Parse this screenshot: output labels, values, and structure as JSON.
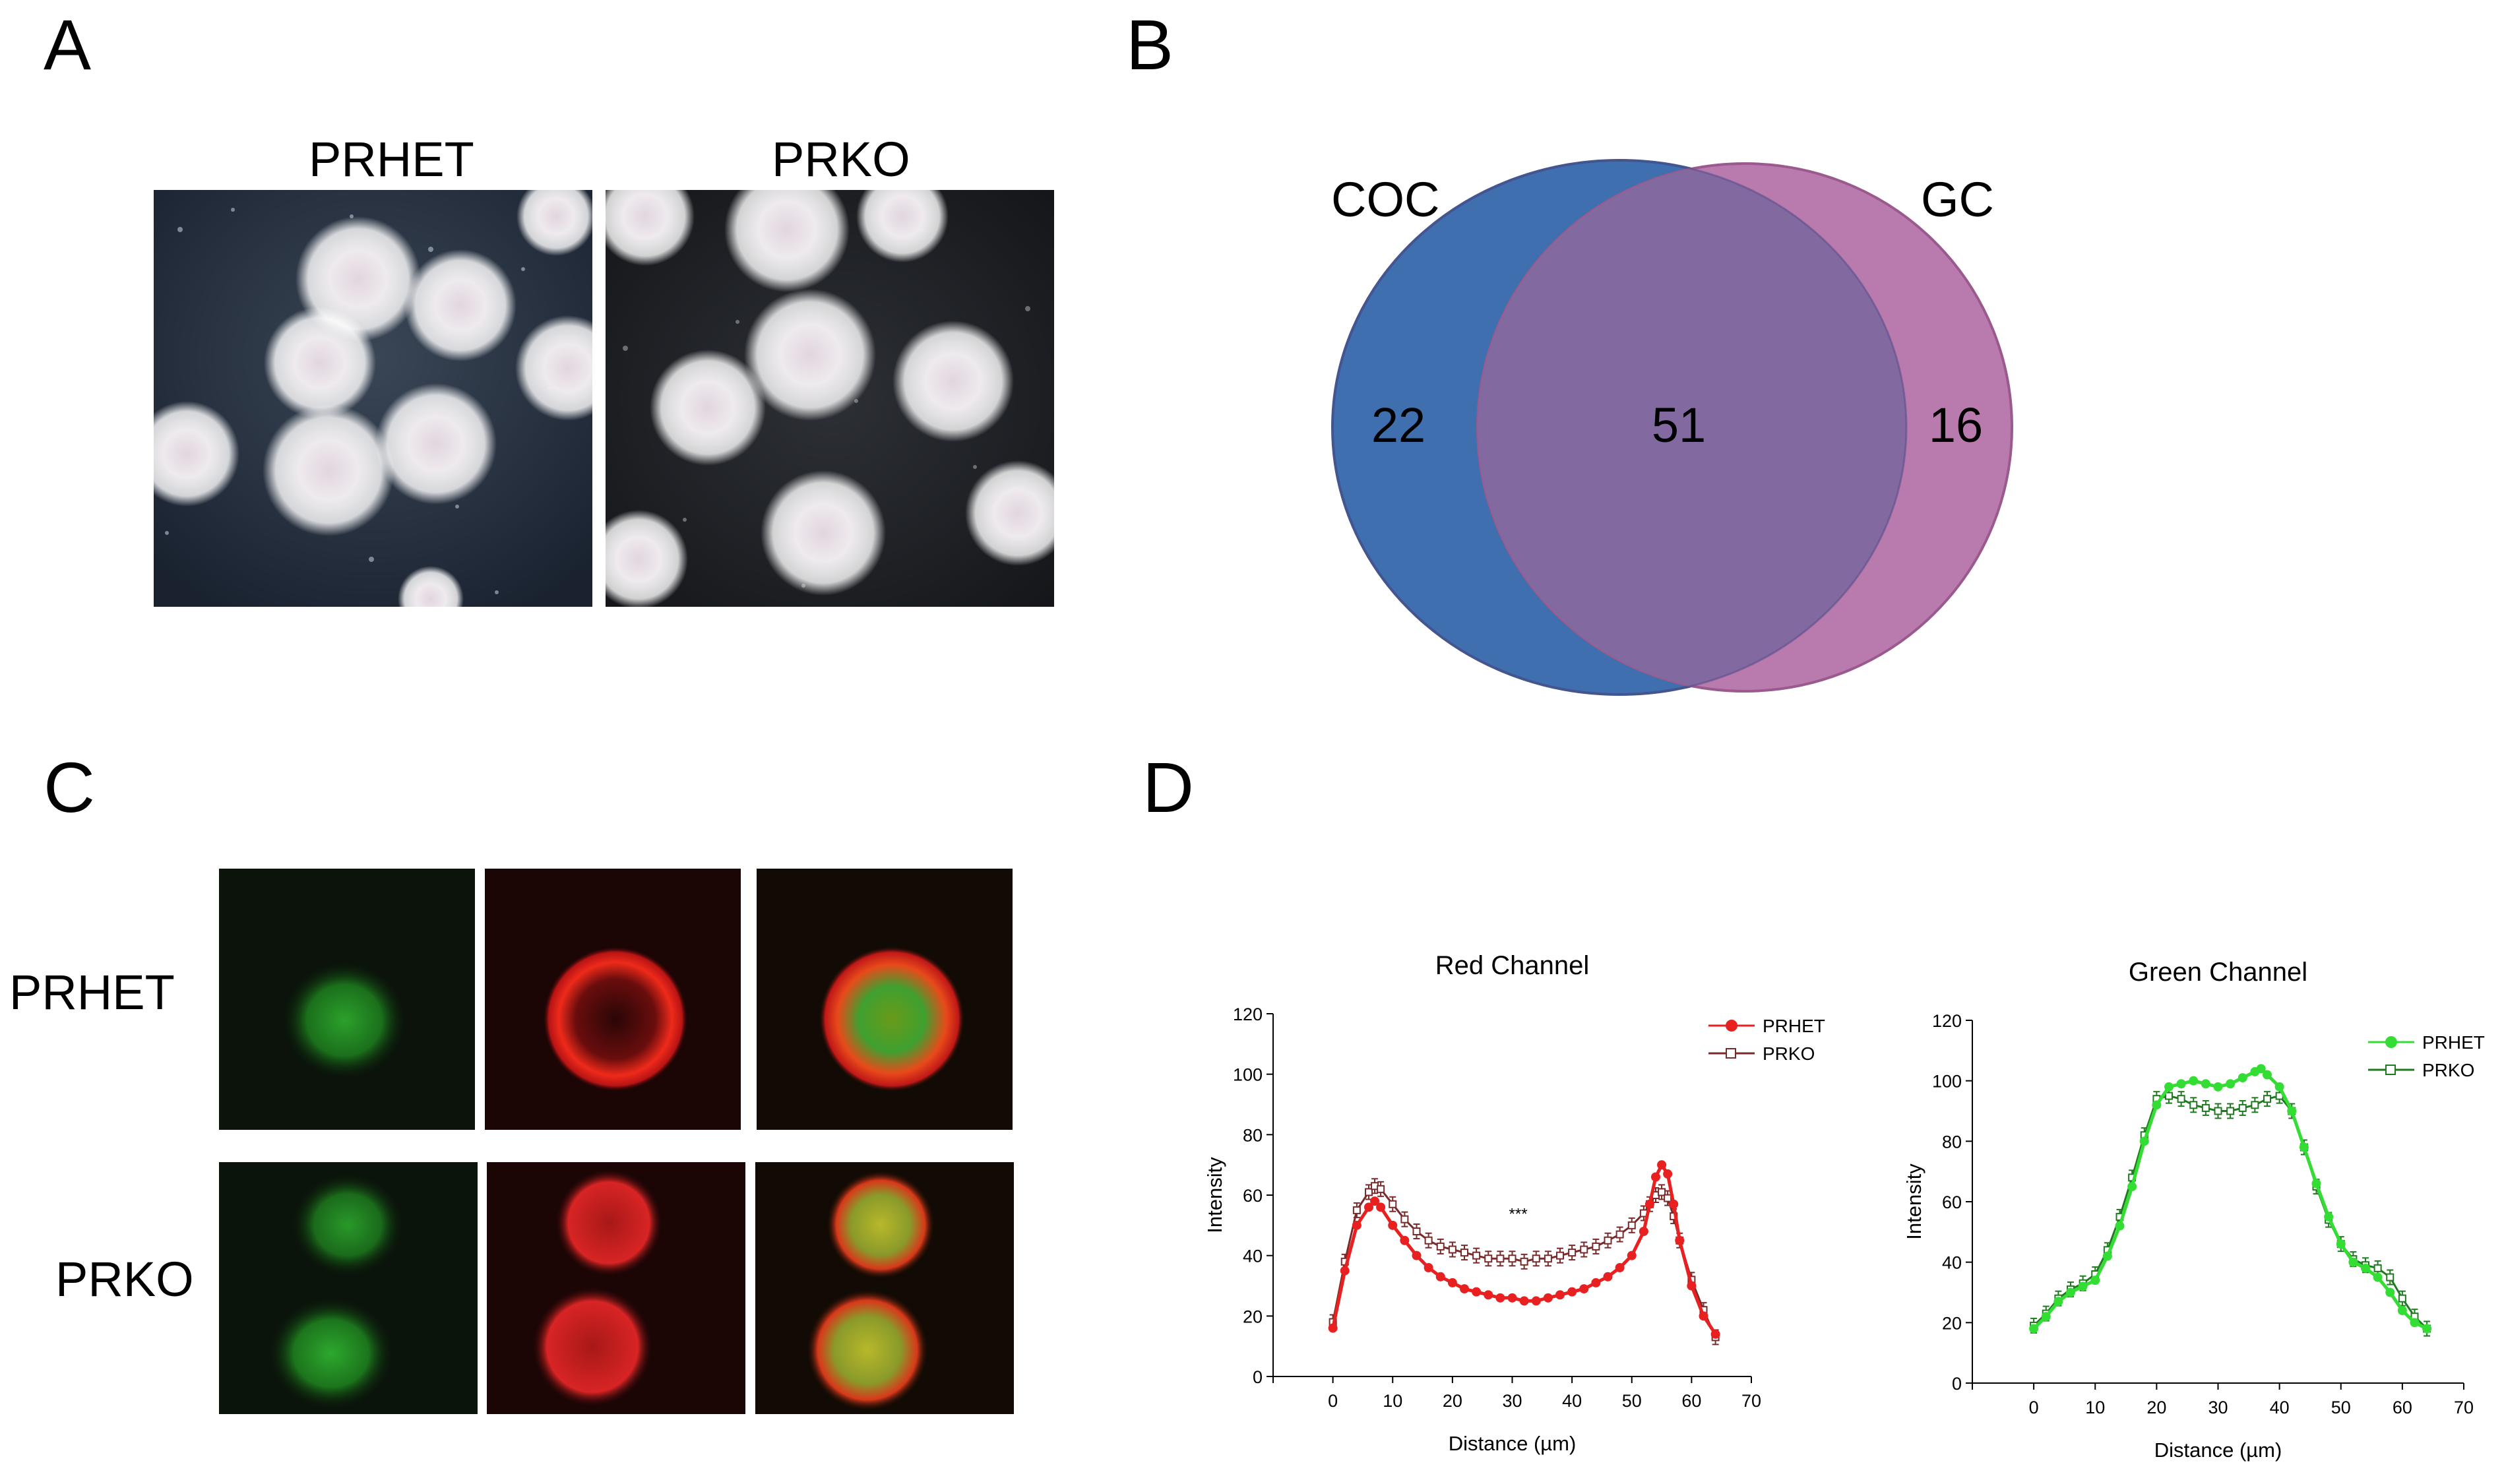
{
  "panels": {
    "A": {
      "letter": "A",
      "labels": [
        "PRHET",
        "PRKO"
      ]
    },
    "B": {
      "letter": "B",
      "sets": [
        {
          "name": "COC",
          "color": "#3f6faf",
          "only": "22"
        },
        {
          "name": "GC",
          "color": "#b97aae",
          "only": "16"
        }
      ],
      "overlap": "51",
      "overlap_color": "#826aa0"
    },
    "C": {
      "letter": "C",
      "row_labels": [
        "PRHET",
        "PRKO"
      ]
    },
    "D": {
      "letter": "D"
    }
  },
  "chart_data": [
    {
      "type": "line",
      "title": "Red Channel",
      "xlabel": "Distance (µm)",
      "ylabel": "Intensity",
      "xlim": [
        -10,
        70
      ],
      "ylim": [
        0,
        120
      ],
      "x_ticks": [
        "0",
        "10",
        "20",
        "30",
        "40",
        "50",
        "60",
        "70"
      ],
      "y_ticks": [
        "0",
        "20",
        "40",
        "60",
        "80",
        "100",
        "120"
      ],
      "annotation": "***",
      "annotation_at": [
        31,
        52
      ],
      "legend": "top-right",
      "series": [
        {
          "name": "PRHET",
          "color": "#e82020",
          "marker": "filled-circle",
          "x": [
            0,
            2,
            4,
            6,
            7,
            8,
            10,
            12,
            14,
            16,
            18,
            20,
            22,
            24,
            26,
            28,
            30,
            32,
            34,
            36,
            38,
            40,
            42,
            44,
            46,
            48,
            50,
            52,
            53,
            54,
            55,
            56,
            57,
            58,
            60,
            62,
            64
          ],
          "y": [
            16,
            35,
            50,
            56,
            58,
            56,
            50,
            45,
            40,
            36,
            33,
            31,
            29,
            28,
            27,
            26,
            26,
            25,
            25,
            26,
            27,
            28,
            29,
            31,
            33,
            36,
            40,
            48,
            57,
            66,
            70,
            67,
            57,
            45,
            30,
            20,
            14
          ]
        },
        {
          "name": "PRKO",
          "color": "#7a2a2a",
          "marker": "open-square",
          "x": [
            0,
            2,
            4,
            6,
            7,
            8,
            10,
            12,
            14,
            16,
            18,
            20,
            22,
            24,
            26,
            28,
            30,
            32,
            34,
            36,
            38,
            40,
            42,
            44,
            46,
            48,
            50,
            52,
            53,
            54,
            55,
            56,
            57,
            58,
            60,
            62,
            64
          ],
          "y": [
            18,
            38,
            55,
            61,
            63,
            62,
            57,
            52,
            48,
            45,
            43,
            42,
            41,
            40,
            39,
            39,
            39,
            38,
            39,
            39,
            40,
            41,
            42,
            43,
            45,
            47,
            50,
            54,
            57,
            60,
            61,
            59,
            53,
            45,
            32,
            22,
            13
          ]
        }
      ]
    },
    {
      "type": "line",
      "title": "Green Channel",
      "xlabel": "Distance (µm)",
      "ylabel": "Intensity",
      "xlim": [
        -10,
        70
      ],
      "ylim": [
        0,
        120
      ],
      "x_ticks": [
        "0",
        "10",
        "20",
        "30",
        "40",
        "50",
        "60",
        "70"
      ],
      "y_ticks": [
        "0",
        "20",
        "40",
        "60",
        "80",
        "100",
        "120"
      ],
      "legend": "top-right",
      "series": [
        {
          "name": "PRHET",
          "color": "#33dd33",
          "marker": "filled-circle",
          "x": [
            0,
            2,
            4,
            6,
            8,
            10,
            12,
            14,
            16,
            18,
            20,
            22,
            24,
            26,
            28,
            30,
            32,
            34,
            36,
            37,
            38,
            40,
            42,
            44,
            46,
            48,
            50,
            52,
            54,
            56,
            58,
            60,
            62,
            64
          ],
          "y": [
            18,
            22,
            27,
            30,
            32,
            34,
            42,
            52,
            65,
            80,
            92,
            98,
            99,
            100,
            99,
            98,
            99,
            101,
            103,
            104,
            102,
            98,
            90,
            78,
            66,
            55,
            46,
            40,
            38,
            35,
            30,
            24,
            20,
            18
          ]
        },
        {
          "name": "PRKO",
          "color": "#1f7a1f",
          "marker": "open-square",
          "x": [
            0,
            2,
            4,
            6,
            8,
            10,
            12,
            14,
            16,
            18,
            20,
            22,
            24,
            26,
            28,
            30,
            32,
            34,
            36,
            38,
            40,
            42,
            44,
            46,
            48,
            50,
            52,
            54,
            56,
            58,
            60,
            62,
            64
          ],
          "y": [
            19,
            23,
            28,
            31,
            33,
            36,
            44,
            55,
            68,
            82,
            94,
            95,
            94,
            92,
            91,
            90,
            90,
            91,
            92,
            94,
            95,
            90,
            78,
            65,
            54,
            46,
            41,
            39,
            38,
            35,
            28,
            22,
            18
          ]
        }
      ]
    }
  ]
}
